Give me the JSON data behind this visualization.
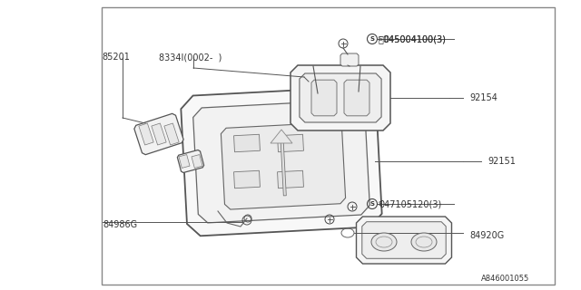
{
  "bg_color": "#ffffff",
  "border_color": "#aaaaaa",
  "lc": "#555555",
  "labels_fs": 7,
  "fig_w": 6.4,
  "fig_h": 3.2,
  "dpi": 100,
  "border": [
    0.175,
    0.025,
    0.78,
    0.955
  ],
  "ref_num": "A846001055"
}
